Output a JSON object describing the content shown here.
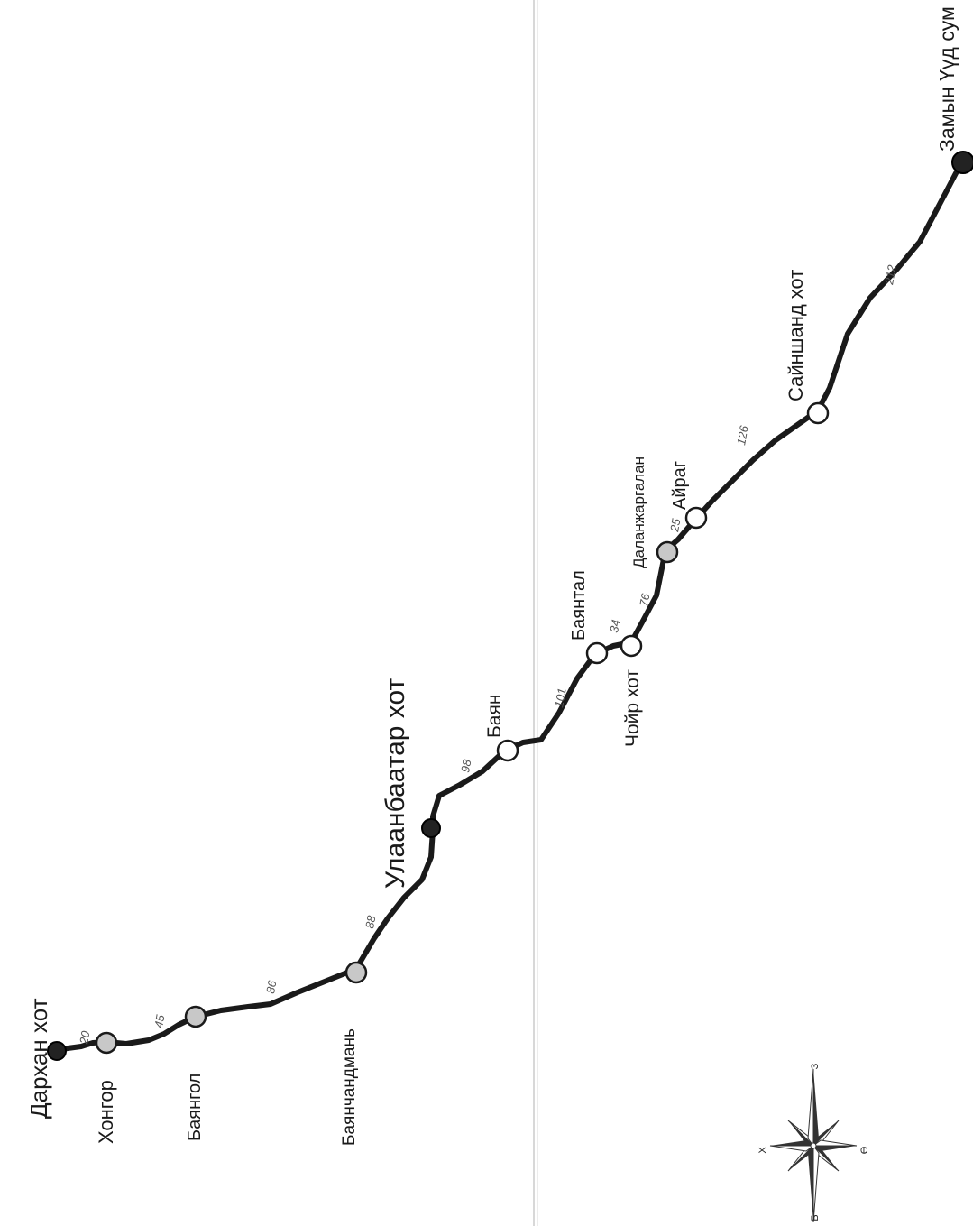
{
  "map": {
    "colors": {
      "route": "#1a1a1a",
      "major_station": "#222222",
      "station_gray": "#c8c8c8",
      "station_white": "#ffffff",
      "fold_line": "#aaaaaa"
    },
    "stations": [
      {
        "id": "darkhan",
        "label": "Дархан хот",
        "kind": "major"
      },
      {
        "id": "khongor",
        "label": "Хонгор",
        "kind": "gray"
      },
      {
        "id": "bayangol",
        "label": "Баянгол",
        "kind": "gray"
      },
      {
        "id": "bayanchandmani",
        "label": "Баянчандмань",
        "kind": "gray"
      },
      {
        "id": "ulaanbaatar",
        "label": "Улаанбаатар хот",
        "kind": "major"
      },
      {
        "id": "bayan",
        "label": "Баян",
        "kind": "white"
      },
      {
        "id": "bayantal",
        "label": "Баянтал",
        "kind": "white"
      },
      {
        "id": "choir",
        "label": "Чойр хот",
        "kind": "white"
      },
      {
        "id": "dalanjargalan",
        "label": "Даланжаргалан",
        "kind": "gray"
      },
      {
        "id": "airag",
        "label": "Айраг",
        "kind": "white"
      },
      {
        "id": "sainshand",
        "label": "Сайншанд хот",
        "kind": "white"
      },
      {
        "id": "zamyn_uud",
        "label": "Замын Үүд сум",
        "kind": "major"
      }
    ],
    "distances": [
      {
        "id": "d1",
        "label": "20"
      },
      {
        "id": "d2",
        "label": "45"
      },
      {
        "id": "d3",
        "label": "86"
      },
      {
        "id": "d4",
        "label": "88"
      },
      {
        "id": "d5",
        "label": "98"
      },
      {
        "id": "d6",
        "label": "101"
      },
      {
        "id": "d7",
        "label": "34"
      },
      {
        "id": "d8",
        "label": "76"
      },
      {
        "id": "d9",
        "label": "25"
      },
      {
        "id": "d10",
        "label": "126"
      },
      {
        "id": "d11",
        "label": "212"
      }
    ],
    "compass": {
      "north": "Х",
      "south": "Ө",
      "west": "Б",
      "east": "З"
    }
  }
}
